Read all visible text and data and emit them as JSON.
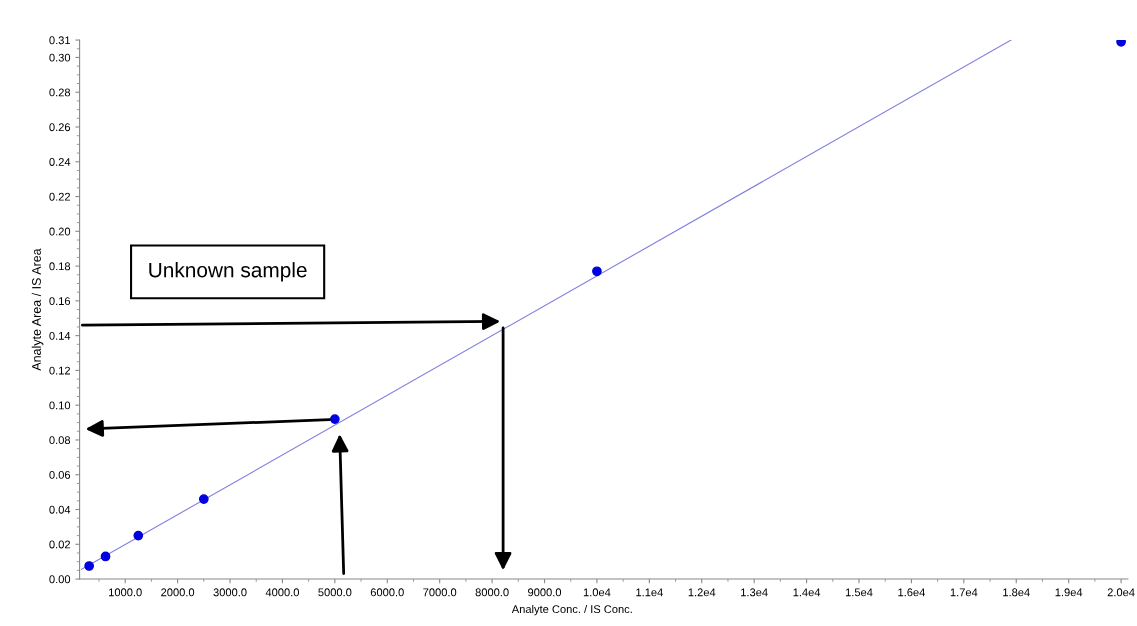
{
  "chart_data": {
    "type": "scatter",
    "xlabel": "Analyte Conc. / IS Conc.",
    "ylabel": "Analyte Area / IS Area",
    "x": [
      312.5,
      625,
      1250,
      2500,
      5000,
      10000,
      20000
    ],
    "series": [
      {
        "color": "#0000e0",
        "values": [
          0.0075,
          0.013,
          0.025,
          0.046,
          0.092,
          0.177,
          0.309
        ]
      },
      {
        "type": "line",
        "color": "#8080e0",
        "x": [
          170,
          17900
        ],
        "values": [
          0.0056,
          0.31
        ],
        "marker": "none"
      }
    ],
    "marker": "circle",
    "annotations": [
      "Unknown sample"
    ],
    "xlim": [
      130,
      20130
    ],
    "ylim": [
      0,
      0.31
    ],
    "xticks": [
      {
        "value": 1000,
        "label": "1000.0"
      },
      {
        "value": 2000,
        "label": "2000.0"
      },
      {
        "value": 3000,
        "label": "3000.0"
      },
      {
        "value": 4000,
        "label": "4000.0"
      },
      {
        "value": 5000,
        "label": "5000.0"
      },
      {
        "value": 6000,
        "label": "6000.0"
      },
      {
        "value": 7000,
        "label": "7000.0"
      },
      {
        "value": 8000,
        "label": "8000.0"
      },
      {
        "value": 9000,
        "label": "9000.0"
      },
      {
        "value": 10000,
        "label": "1.0e4"
      },
      {
        "value": 11000,
        "label": "1.1e4"
      },
      {
        "value": 12000,
        "label": "1.2e4"
      },
      {
        "value": 13000,
        "label": "1.3e4"
      },
      {
        "value": 14000,
        "label": "1.4e4"
      },
      {
        "value": 15000,
        "label": "1.5e4"
      },
      {
        "value": 16000,
        "label": "1.6e4"
      },
      {
        "value": 17000,
        "label": "1.7e4"
      },
      {
        "value": 18000,
        "label": "1.8e4"
      },
      {
        "value": 19000,
        "label": "1.9e4"
      },
      {
        "value": 20000,
        "label": "2.0e4"
      }
    ],
    "yticks": [
      {
        "value": 0,
        "label": "0.00"
      },
      {
        "value": 0.02,
        "label": "0.02"
      },
      {
        "value": 0.04,
        "label": "0.04"
      },
      {
        "value": 0.06,
        "label": "0.06"
      },
      {
        "value": 0.08,
        "label": "0.08"
      },
      {
        "value": 0.1,
        "label": "0.10"
      },
      {
        "value": 0.12,
        "label": "0.12"
      },
      {
        "value": 0.14,
        "label": "0.14"
      },
      {
        "value": 0.16,
        "label": "0.16"
      },
      {
        "value": 0.18,
        "label": "0.18"
      },
      {
        "value": 0.2,
        "label": "0.20"
      },
      {
        "value": 0.22,
        "label": "0.22"
      },
      {
        "value": 0.24,
        "label": "0.24"
      },
      {
        "value": 0.26,
        "label": "0.26"
      },
      {
        "value": 0.28,
        "label": "0.28"
      },
      {
        "value": 0.3,
        "label": "0.30"
      },
      {
        "value": 0.31,
        "label": "0.31"
      }
    ],
    "grid": false,
    "legend": false
  }
}
